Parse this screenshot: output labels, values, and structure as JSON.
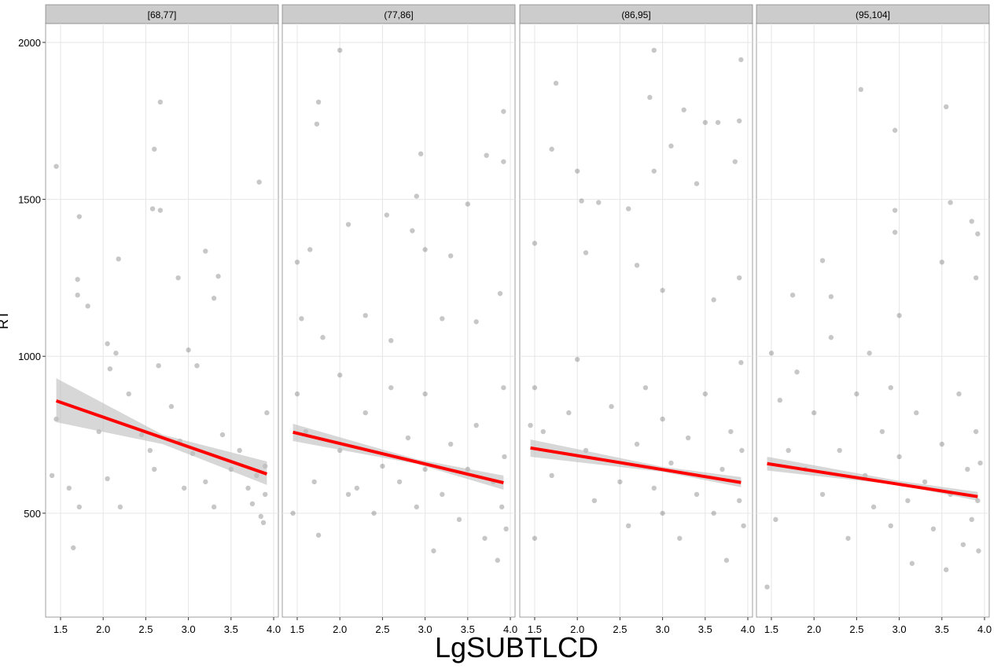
{
  "xlabel": "LgSUBTLCD",
  "ylabel": "RT",
  "chart_data": [
    {
      "type": "scatter",
      "title": "[68,77]",
      "point_color": "#000000",
      "xlim": [
        1.325,
        4.055
      ],
      "ylim": [
        169,
        2060
      ],
      "xticks": [
        1.5,
        {
          "value": 2,
          "label": "2.0"
        },
        2.5,
        {
          "value": 3,
          "label": "3.0"
        },
        3.5,
        {
          "value": 4,
          "label": "4.0"
        }
      ],
      "yticks": [
        500,
        1000,
        1500,
        2000
      ],
      "grid": true,
      "x": [
        1.45,
        1.72,
        1.7,
        1.7,
        1.82,
        2.67,
        2.6,
        2.58,
        2.67,
        3.2,
        3.83,
        2.88,
        3.35,
        3.3,
        2.18,
        2.05,
        2.15,
        1.45,
        1.6,
        1.65,
        1.72,
        1.95,
        2.05,
        2.3,
        2.45,
        2.55,
        2.6,
        2.65,
        2.8,
        2.9,
        2.95,
        3.0,
        3.05,
        3.1,
        3.2,
        3.3,
        3.4,
        3.5,
        3.6,
        3.7,
        3.8,
        3.85,
        3.9,
        3.92,
        3.9,
        3.88,
        3.75,
        2.2,
        1.4,
        2.08
      ],
      "y": [
        1605,
        1445,
        1245,
        1195,
        1160,
        1810,
        1660,
        1470,
        1465,
        1335,
        1555,
        1250,
        1255,
        1185,
        1310,
        1040,
        1010,
        800,
        580,
        390,
        520,
        760,
        610,
        880,
        750,
        700,
        640,
        970,
        840,
        730,
        580,
        1020,
        690,
        970,
        600,
        520,
        750,
        640,
        700,
        580,
        620,
        490,
        560,
        820,
        650,
        470,
        530,
        520,
        620,
        960
      ],
      "fit": {
        "color": "#ff0000",
        "x": [
          1.45,
          3.92
        ],
        "y": [
          858,
          625
        ]
      },
      "band": {
        "color": "#bdbdbd",
        "x": [
          1.45,
          2.7,
          3.92
        ],
        "lower": [
          790,
          720,
          590
        ],
        "upper": [
          930,
          750,
          665
        ]
      }
    },
    {
      "type": "scatter",
      "title": "(77,86]",
      "point_color": "#000000",
      "xlim": [
        1.325,
        4.055
      ],
      "ylim": [
        169,
        2060
      ],
      "xticks": [
        1.5,
        {
          "value": 2,
          "label": "2.0"
        },
        2.5,
        {
          "value": 3,
          "label": "3.0"
        },
        3.5,
        {
          "value": 4,
          "label": "4.0"
        }
      ],
      "yticks": [
        500,
        1000,
        1500,
        2000
      ],
      "grid": true,
      "x": [
        2.0,
        1.75,
        1.73,
        2.95,
        3.92,
        3.92,
        3.72,
        2.9,
        2.85,
        3.0,
        3.5,
        2.55,
        2.1,
        1.5,
        3.3,
        1.55,
        1.65,
        1.8,
        2.3,
        2.6,
        3.2,
        3.6,
        3.88,
        1.5,
        1.6,
        1.7,
        1.75,
        2.0,
        2.0,
        2.1,
        2.3,
        2.4,
        2.5,
        2.6,
        2.7,
        2.8,
        2.9,
        3.0,
        3.0,
        3.1,
        3.2,
        3.3,
        3.4,
        3.5,
        3.6,
        3.7,
        3.8,
        3.85,
        3.9,
        3.92,
        3.93,
        3.95,
        1.45,
        2.2
      ],
      "y": [
        1975,
        1810,
        1740,
        1645,
        1780,
        1620,
        1640,
        1510,
        1400,
        1340,
        1485,
        1450,
        1420,
        1300,
        1320,
        1120,
        1340,
        1060,
        1130,
        1050,
        1120,
        1110,
        1200,
        880,
        760,
        600,
        430,
        940,
        700,
        560,
        820,
        500,
        650,
        900,
        600,
        740,
        520,
        880,
        640,
        380,
        560,
        720,
        480,
        640,
        780,
        420,
        600,
        350,
        520,
        900,
        680,
        450,
        500,
        580
      ],
      "fit": {
        "color": "#ff0000",
        "x": [
          1.45,
          3.92
        ],
        "y": [
          758,
          597
        ]
      },
      "band": {
        "color": "#bdbdbd",
        "x": [
          1.45,
          2.9,
          3.92
        ],
        "lower": [
          730,
          657,
          575
        ],
        "upper": [
          785,
          672,
          620
        ]
      }
    },
    {
      "type": "scatter",
      "title": "(86,95]",
      "point_color": "#000000",
      "xlim": [
        1.325,
        4.055
      ],
      "ylim": [
        169,
        2060
      ],
      "xticks": [
        1.5,
        {
          "value": 2,
          "label": "2.0"
        },
        2.5,
        {
          "value": 3,
          "label": "3.0"
        },
        3.5,
        {
          "value": 4,
          "label": "4.0"
        }
      ],
      "yticks": [
        500,
        1000,
        1500,
        2000
      ],
      "grid": true,
      "x": [
        2.9,
        1.75,
        2.85,
        3.92,
        3.9,
        3.25,
        3.65,
        3.5,
        3.1,
        1.7,
        2.0,
        2.9,
        3.4,
        3.85,
        1.5,
        2.05,
        2.25,
        2.1,
        2.6,
        2.7,
        3.0,
        3.6,
        3.9,
        1.5,
        1.6,
        1.7,
        1.5,
        1.9,
        2.0,
        2.1,
        2.2,
        2.4,
        2.5,
        2.6,
        2.7,
        2.8,
        2.9,
        3.0,
        3.0,
        3.1,
        3.2,
        3.3,
        3.4,
        3.5,
        3.6,
        3.7,
        3.75,
        3.8,
        3.9,
        3.92,
        3.93,
        3.95,
        1.45
      ],
      "y": [
        1975,
        1870,
        1825,
        1945,
        1750,
        1785,
        1745,
        1745,
        1670,
        1660,
        1590,
        1590,
        1550,
        1620,
        1360,
        1495,
        1490,
        1330,
        1470,
        1290,
        1210,
        1180,
        1250,
        900,
        760,
        620,
        420,
        820,
        990,
        700,
        540,
        840,
        600,
        460,
        720,
        900,
        580,
        800,
        500,
        660,
        420,
        740,
        560,
        880,
        500,
        640,
        350,
        760,
        540,
        980,
        700,
        460,
        780
      ],
      "fit": {
        "color": "#ff0000",
        "x": [
          1.45,
          3.92
        ],
        "y": [
          708,
          598
        ]
      },
      "band": {
        "color": "#bdbdbd",
        "x": [
          1.45,
          3.0,
          3.92
        ],
        "lower": [
          680,
          632,
          583
        ],
        "upper": [
          735,
          648,
          615
        ]
      }
    },
    {
      "type": "scatter",
      "title": "(95,104]",
      "point_color": "#000000",
      "xlim": [
        1.325,
        4.055
      ],
      "ylim": [
        169,
        2060
      ],
      "xticks": [
        1.5,
        {
          "value": 2,
          "label": "2.0"
        },
        2.5,
        {
          "value": 3,
          "label": "3.0"
        },
        3.5,
        {
          "value": 4,
          "label": "4.0"
        }
      ],
      "yticks": [
        500,
        1000,
        1500,
        2000
      ],
      "grid": true,
      "x": [
        2.55,
        3.55,
        2.95,
        3.6,
        3.85,
        3.92,
        2.95,
        2.95,
        2.1,
        1.75,
        2.2,
        3.0,
        3.5,
        3.9,
        1.5,
        1.6,
        1.7,
        1.55,
        1.45,
        1.8,
        1.9,
        2.0,
        2.1,
        2.2,
        2.3,
        2.4,
        2.5,
        2.6,
        2.7,
        2.8,
        2.9,
        2.9,
        3.0,
        3.1,
        3.15,
        3.2,
        3.3,
        3.4,
        3.5,
        3.55,
        3.6,
        3.7,
        3.75,
        3.8,
        3.85,
        3.9,
        3.92,
        3.93,
        3.95,
        2.65
      ],
      "y": [
        1850,
        1795,
        1720,
        1490,
        1430,
        1390,
        1465,
        1395,
        1305,
        1195,
        1190,
        1130,
        1300,
        1250,
        1010,
        860,
        700,
        480,
        265,
        950,
        640,
        820,
        560,
        1060,
        700,
        420,
        880,
        620,
        520,
        760,
        900,
        460,
        680,
        540,
        340,
        820,
        600,
        450,
        720,
        320,
        560,
        880,
        400,
        640,
        480,
        760,
        540,
        380,
        660,
        1010
      ],
      "fit": {
        "color": "#ff0000",
        "x": [
          1.45,
          3.92
        ],
        "y": [
          658,
          553
        ]
      },
      "band": {
        "color": "#bdbdbd",
        "x": [
          1.45,
          3.0,
          3.92
        ],
        "lower": [
          636,
          590,
          540
        ],
        "upper": [
          680,
          603,
          568
        ]
      }
    }
  ]
}
